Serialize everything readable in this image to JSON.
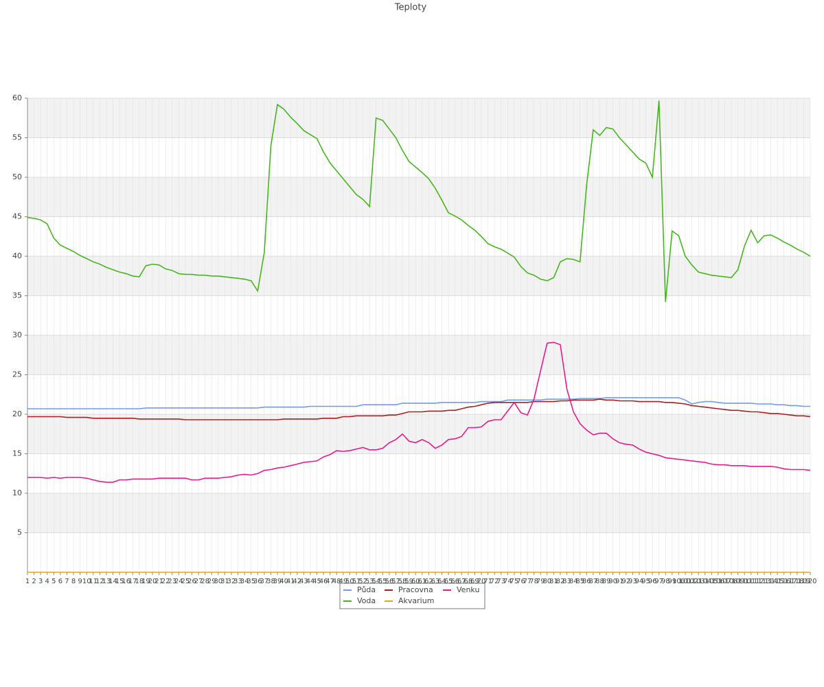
{
  "chart_data": {
    "type": "line",
    "title": "Teploty",
    "categories": [
      "1",
      "2",
      "3",
      "4",
      "5",
      "6",
      "7",
      "8",
      "9",
      "10",
      "11",
      "12",
      "13",
      "14",
      "15",
      "16",
      "17",
      "18",
      "19",
      "20",
      "21",
      "22",
      "23",
      "24",
      "25",
      "26",
      "27",
      "28",
      "29",
      "30",
      "31",
      "32",
      "33",
      "34",
      "35",
      "36",
      "37",
      "38",
      "39",
      "40",
      "41",
      "42",
      "43",
      "44",
      "45",
      "46",
      "47",
      "48",
      "49",
      "50",
      "51",
      "52",
      "53",
      "54",
      "55",
      "56",
      "57",
      "58",
      "59",
      "60",
      "61",
      "62",
      "63",
      "64",
      "65",
      "66",
      "67",
      "68",
      "69",
      "70",
      "71",
      "72",
      "73",
      "74",
      "75",
      "76",
      "77",
      "78",
      "79",
      "80",
      "81",
      "82",
      "83",
      "84",
      "85",
      "86",
      "87",
      "88",
      "89",
      "90",
      "91",
      "92",
      "93",
      "94",
      "95",
      "96",
      "97",
      "98",
      "99",
      "100",
      "101",
      "102",
      "103",
      "104",
      "105",
      "106",
      "107",
      "108",
      "109",
      "110",
      "111",
      "112",
      "113",
      "114",
      "115",
      "116",
      "117",
      "118",
      "119",
      "120"
    ],
    "series": [
      {
        "name": "Půda",
        "color": "#6f9be8",
        "values": [
          20.7,
          20.7,
          20.7,
          20.7,
          20.7,
          20.7,
          20.7,
          20.7,
          20.7,
          20.7,
          20.7,
          20.7,
          20.7,
          20.7,
          20.7,
          20.7,
          20.7,
          20.7,
          20.8,
          20.8,
          20.8,
          20.8,
          20.8,
          20.8,
          20.8,
          20.8,
          20.8,
          20.8,
          20.8,
          20.8,
          20.8,
          20.8,
          20.8,
          20.8,
          20.8,
          20.8,
          20.9,
          20.9,
          20.9,
          20.9,
          20.9,
          20.9,
          20.9,
          21.0,
          21.0,
          21.0,
          21.0,
          21.0,
          21.0,
          21.0,
          21.0,
          21.2,
          21.2,
          21.2,
          21.2,
          21.2,
          21.2,
          21.4,
          21.4,
          21.4,
          21.4,
          21.4,
          21.4,
          21.5,
          21.5,
          21.5,
          21.5,
          21.5,
          21.5,
          21.6,
          21.6,
          21.6,
          21.6,
          21.8,
          21.8,
          21.8,
          21.8,
          21.8,
          21.8,
          21.9,
          21.9,
          21.9,
          21.9,
          21.9,
          22.0,
          22.0,
          22.0,
          22.0,
          22.1,
          22.1,
          22.1,
          22.1,
          22.1,
          22.1,
          22.1,
          22.1,
          22.1,
          22.1,
          22.1,
          22.1,
          21.8,
          21.3,
          21.5,
          21.6,
          21.6,
          21.5,
          21.4,
          21.4,
          21.4,
          21.4,
          21.4,
          21.3,
          21.3,
          21.3,
          21.2,
          21.2,
          21.1,
          21.1,
          21.0,
          21.0
        ]
      },
      {
        "name": "Pracovna",
        "color": "#b01c1c",
        "values": [
          19.7,
          19.7,
          19.7,
          19.7,
          19.7,
          19.7,
          19.6,
          19.6,
          19.6,
          19.6,
          19.5,
          19.5,
          19.5,
          19.5,
          19.5,
          19.5,
          19.5,
          19.4,
          19.4,
          19.4,
          19.4,
          19.4,
          19.4,
          19.4,
          19.3,
          19.3,
          19.3,
          19.3,
          19.3,
          19.3,
          19.3,
          19.3,
          19.3,
          19.3,
          19.3,
          19.3,
          19.3,
          19.3,
          19.3,
          19.4,
          19.4,
          19.4,
          19.4,
          19.4,
          19.4,
          19.5,
          19.5,
          19.5,
          19.7,
          19.7,
          19.8,
          19.8,
          19.8,
          19.8,
          19.8,
          19.9,
          19.9,
          20.1,
          20.3,
          20.3,
          20.3,
          20.4,
          20.4,
          20.4,
          20.5,
          20.5,
          20.7,
          20.9,
          21.0,
          21.2,
          21.4,
          21.5,
          21.5,
          21.5,
          21.5,
          21.5,
          21.5,
          21.6,
          21.6,
          21.6,
          21.6,
          21.7,
          21.7,
          21.8,
          21.8,
          21.8,
          21.8,
          21.9,
          21.8,
          21.8,
          21.7,
          21.7,
          21.7,
          21.6,
          21.6,
          21.6,
          21.6,
          21.5,
          21.5,
          21.4,
          21.3,
          21.1,
          21.0,
          20.9,
          20.8,
          20.7,
          20.6,
          20.5,
          20.5,
          20.4,
          20.3,
          20.3,
          20.2,
          20.1,
          20.1,
          20.0,
          19.9,
          19.8,
          19.8,
          19.7
        ]
      },
      {
        "name": "Venku",
        "color": "#e8198f",
        "values": [
          12.0,
          12.0,
          12.0,
          11.9,
          12.0,
          11.9,
          12.0,
          12.0,
          12.0,
          11.9,
          11.7,
          11.5,
          11.4,
          11.4,
          11.7,
          11.7,
          11.8,
          11.8,
          11.8,
          11.8,
          11.9,
          11.9,
          11.9,
          11.9,
          11.9,
          11.7,
          11.7,
          11.9,
          11.9,
          11.9,
          12.0,
          12.1,
          12.3,
          12.4,
          12.3,
          12.5,
          12.9,
          13.0,
          13.2,
          13.3,
          13.5,
          13.7,
          13.9,
          14.0,
          14.1,
          14.6,
          14.9,
          15.4,
          15.3,
          15.4,
          15.6,
          15.8,
          15.5,
          15.5,
          15.7,
          16.4,
          16.8,
          17.5,
          16.6,
          16.4,
          16.8,
          16.4,
          15.7,
          16.1,
          16.8,
          16.9,
          17.2,
          18.3,
          18.3,
          18.4,
          19.1,
          19.3,
          19.3,
          20.4,
          21.5,
          20.2,
          19.9,
          21.9,
          25.5,
          29.0,
          29.1,
          28.8,
          23.2,
          20.3,
          18.8,
          18.0,
          17.4,
          17.6,
          17.6,
          16.9,
          16.4,
          16.2,
          16.1,
          15.6,
          15.2,
          15.0,
          14.8,
          14.5,
          14.4,
          14.3,
          14.2,
          14.1,
          14.0,
          13.9,
          13.7,
          13.6,
          13.6,
          13.5,
          13.5,
          13.5,
          13.4,
          13.4,
          13.4,
          13.4,
          13.3,
          13.1,
          13.0,
          13.0,
          13.0,
          12.9
        ]
      },
      {
        "name": "Voda",
        "color": "#45b71d",
        "values": [
          44.9,
          44.8,
          44.6,
          44.1,
          42.3,
          41.4,
          41.0,
          40.6,
          40.1,
          39.7,
          39.3,
          39.0,
          38.6,
          38.3,
          38.0,
          37.8,
          37.5,
          37.4,
          38.8,
          39.0,
          38.9,
          38.4,
          38.2,
          37.8,
          37.7,
          37.7,
          37.6,
          37.6,
          37.5,
          37.5,
          37.4,
          37.3,
          37.2,
          37.1,
          36.9,
          35.6,
          40.5,
          54.0,
          59.2,
          58.6,
          57.6,
          56.8,
          55.9,
          55.4,
          54.9,
          53.2,
          51.8,
          50.8,
          49.8,
          48.8,
          47.8,
          47.2,
          46.3,
          57.5,
          57.2,
          56.1,
          55.0,
          53.4,
          52.0,
          51.3,
          50.6,
          49.8,
          48.6,
          47.1,
          45.5,
          45.1,
          44.6,
          43.9,
          43.3,
          42.5,
          41.6,
          41.2,
          40.9,
          40.4,
          39.9,
          38.7,
          37.9,
          37.6,
          37.1,
          36.9,
          37.3,
          39.3,
          39.7,
          39.6,
          39.3,
          49.0,
          56.0,
          55.3,
          56.3,
          56.1,
          55.0,
          54.1,
          53.2,
          52.3,
          51.8,
          50.0,
          59.7,
          34.2,
          43.2,
          42.6,
          40.0,
          38.9,
          38.0,
          37.8,
          37.6,
          37.5,
          37.4,
          37.3,
          38.3,
          41.3,
          43.3,
          41.7,
          42.6,
          42.7,
          42.3,
          41.8,
          41.4,
          40.9,
          40.5,
          40.0
        ]
      },
      {
        "name": "Akvarium",
        "color": "#f0a30a",
        "values": [
          0,
          0,
          0,
          0,
          0,
          0,
          0,
          0,
          0,
          0,
          0,
          0,
          0,
          0,
          0,
          0,
          0,
          0,
          0,
          0,
          0,
          0,
          0,
          0,
          0,
          0,
          0,
          0,
          0,
          0,
          0,
          0,
          0,
          0,
          0,
          0,
          0,
          0,
          0,
          0,
          0,
          0,
          0,
          0,
          0,
          0,
          0,
          0,
          0,
          0,
          0,
          0,
          0,
          0,
          0,
          0,
          0,
          0,
          0,
          0,
          0,
          0,
          0,
          0,
          0,
          0,
          0,
          0,
          0,
          0,
          0,
          0,
          0,
          0,
          0,
          0,
          0,
          0,
          0,
          0,
          0,
          0,
          0,
          0,
          0,
          0,
          0,
          0,
          0,
          0,
          0,
          0,
          0,
          0,
          0,
          0,
          0,
          0,
          0,
          0,
          0,
          0,
          0,
          0,
          0,
          0,
          0,
          0,
          0,
          0,
          0,
          0,
          0,
          0,
          0,
          0,
          0,
          0,
          0,
          0
        ]
      }
    ],
    "ylim": [
      0,
      60
    ],
    "yticks": [
      5,
      10,
      15,
      20,
      25,
      30,
      35,
      40,
      45,
      50,
      55,
      60
    ],
    "grid": true,
    "legend": "bottom"
  }
}
